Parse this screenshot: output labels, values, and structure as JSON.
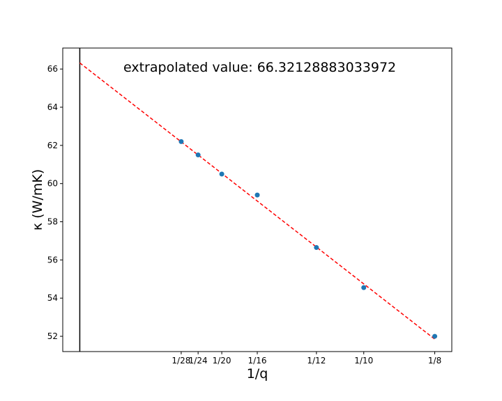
{
  "chart_data": {
    "type": "scatter",
    "xlabel": "1/q",
    "ylabel": "κ (W/mK)",
    "annotation": "extrapolated value:  66.32128883033972",
    "x_tick_labels": [
      "1/28",
      "1/24",
      "1/20",
      "1/16",
      "1/12",
      "1/10",
      "1/8"
    ],
    "x_tick_values": [
      0.035714,
      0.041667,
      0.05,
      0.0625,
      0.083333,
      0.1,
      0.125
    ],
    "xlim": [
      -0.006,
      0.131
    ],
    "ylim": [
      51.2,
      67.1
    ],
    "y_ticks": [
      52,
      54,
      56,
      58,
      60,
      62,
      64,
      66
    ],
    "y_tick_labels": [
      "52",
      "54",
      "56",
      "58",
      "60",
      "62",
      "64",
      "66"
    ],
    "series": [
      {
        "x": [
          0.035714,
          0.041667,
          0.05,
          0.0625,
          0.083333,
          0.1,
          0.125
        ],
        "y": [
          62.2,
          61.5,
          60.5,
          59.4,
          56.65,
          54.55,
          52.0
        ],
        "color": "#1f77b4"
      }
    ],
    "fit_line": {
      "x": [
        0,
        0.125
      ],
      "y": [
        66.32128883033972,
        51.85
      ],
      "color": "#ff0000",
      "style": "dashed"
    },
    "vertical_line": {
      "x": 0,
      "color": "#000000"
    },
    "grid": false
  }
}
